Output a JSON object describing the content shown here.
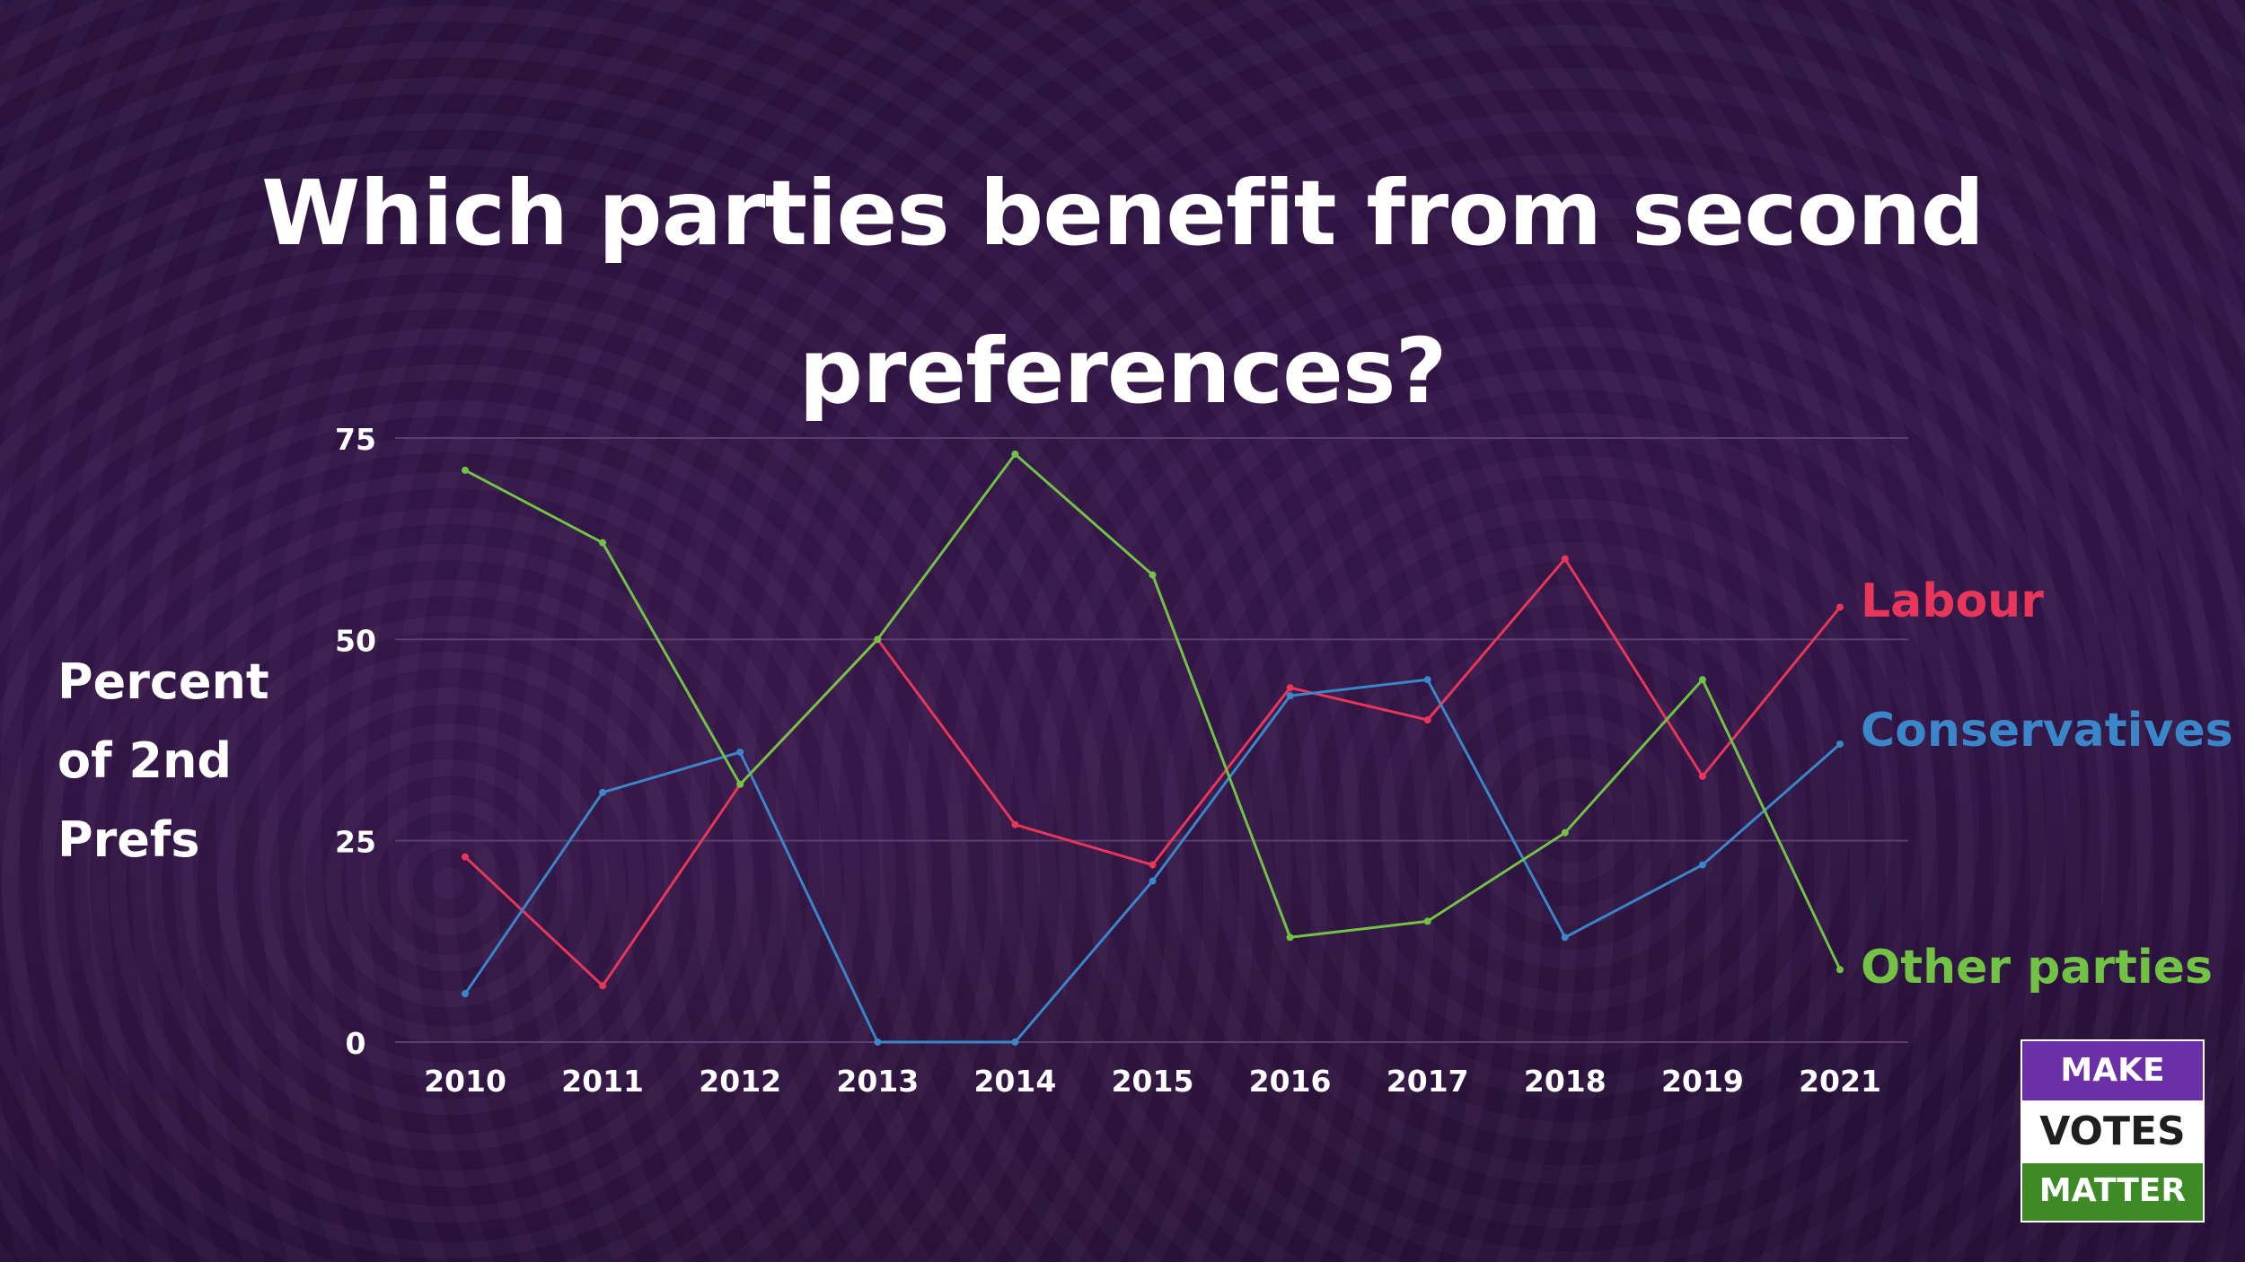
{
  "title": {
    "line1": "Which parties benefit from second",
    "line2": "preferences?"
  },
  "y_axis_label": {
    "line1": "Percent",
    "line2": "of 2nd",
    "line3": "Prefs"
  },
  "logo": {
    "top": "MAKE",
    "middle": "VOTES",
    "bottom": "MATTER"
  },
  "colors": {
    "labour": "#e8365a",
    "conservatives": "#3a86c8",
    "other_parties": "#72c245",
    "text": "#ffffff",
    "gridline": "#5a3f6e"
  },
  "chart_data": {
    "type": "line",
    "title": "Which parties benefit from second preferences?",
    "ylabel": "Percent of 2nd Prefs",
    "xlabel": "",
    "categories": [
      "2010",
      "2011",
      "2012",
      "2013",
      "2014",
      "2015",
      "2016",
      "2017",
      "2018",
      "2019",
      "2021"
    ],
    "ylim": [
      0,
      75
    ],
    "yticks": [
      0,
      25,
      50,
      75
    ],
    "grid": true,
    "legend": "inline-right",
    "series": [
      {
        "name": "Labour",
        "color": "#e8365a",
        "values": [
          23,
          7,
          32,
          50,
          27,
          22,
          44,
          40,
          60,
          33,
          54
        ]
      },
      {
        "name": "Conservatives",
        "color": "#3a86c8",
        "values": [
          6,
          31,
          36,
          0,
          0,
          20,
          43,
          45,
          13,
          22,
          37
        ]
      },
      {
        "name": "Other parties",
        "color": "#72c245",
        "values": [
          71,
          62,
          32,
          50,
          73,
          58,
          13,
          15,
          26,
          45,
          9
        ]
      }
    ]
  }
}
